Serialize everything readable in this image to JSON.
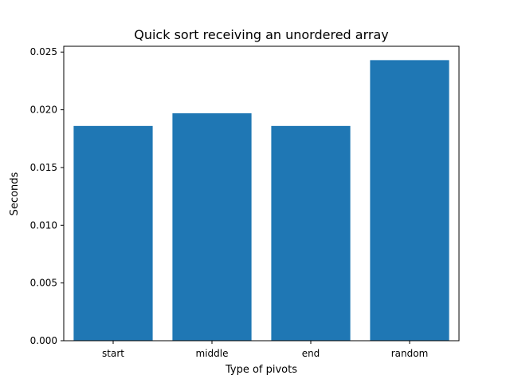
{
  "chart_data": {
    "type": "bar",
    "title": "Quick sort receiving an unordered array",
    "xlabel": "Type of pivots",
    "ylabel": "Seconds",
    "categories": [
      "start",
      "middle",
      "end",
      "random"
    ],
    "values": [
      0.0186,
      0.0197,
      0.0186,
      0.0243
    ],
    "ylim": [
      0,
      0.0255
    ],
    "yticks": [
      0.0,
      0.005,
      0.01,
      0.015,
      0.02,
      0.025
    ],
    "ytick_labels": [
      "0.000",
      "0.005",
      "0.010",
      "0.015",
      "0.020",
      "0.025"
    ],
    "grid": false,
    "legend": "none",
    "bar_color": "#1f77b4"
  }
}
